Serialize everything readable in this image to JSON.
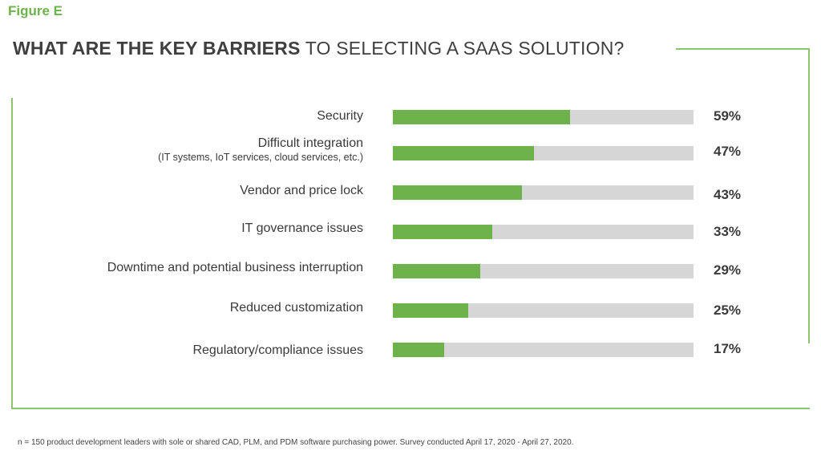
{
  "figure_label": "Figure E",
  "title": {
    "strong": "WHAT ARE THE KEY BARRIERS",
    "rest": " TO SELECTING A SAAS SOLUTION?"
  },
  "colors": {
    "accent": "#6db24b",
    "track": "#d6d6d6",
    "text": "#3a3a3a"
  },
  "chart_data": {
    "type": "bar",
    "orientation": "horizontal",
    "xlim": [
      0,
      100
    ],
    "categories": [
      {
        "label": "Security",
        "sublabel": "",
        "value": 59,
        "value_label": "59%"
      },
      {
        "label": "Difficult integration",
        "sublabel": "(IT systems, IoT services, cloud services, etc.)",
        "value": 47,
        "value_label": "47%"
      },
      {
        "label": "Vendor and price lock",
        "sublabel": "",
        "value": 43,
        "value_label": "43%"
      },
      {
        "label": "IT governance issues",
        "sublabel": "",
        "value": 33,
        "value_label": "33%"
      },
      {
        "label": "Downtime and potential business interruption",
        "sublabel": "",
        "value": 29,
        "value_label": "29%"
      },
      {
        "label": "Reduced customization",
        "sublabel": "",
        "value": 25,
        "value_label": "25%"
      },
      {
        "label": "Regulatory/compliance issues",
        "sublabel": "",
        "value": 17,
        "value_label": "17%"
      }
    ]
  },
  "footnote": "n = 150 product development leaders with sole or shared CAD, PLM, and PDM software purchasing power.  Survey conducted April 17, 2020 - April 27, 2020."
}
